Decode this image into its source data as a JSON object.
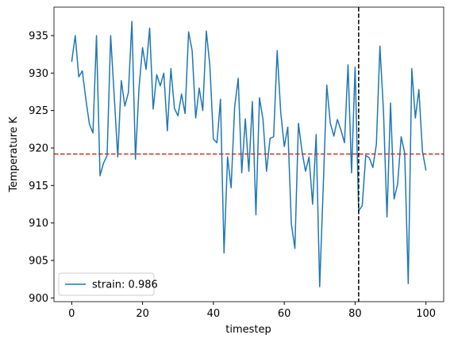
{
  "chart_data": {
    "type": "line",
    "x_label": "timestep",
    "y_label": "Temperature K",
    "x": [
      0,
      1,
      2,
      3,
      4,
      5,
      6,
      7,
      8,
      9,
      10,
      11,
      12,
      13,
      14,
      15,
      16,
      17,
      18,
      19,
      20,
      21,
      22,
      23,
      24,
      25,
      26,
      27,
      28,
      29,
      30,
      31,
      32,
      33,
      34,
      35,
      36,
      37,
      38,
      39,
      40,
      41,
      42,
      43,
      44,
      45,
      46,
      47,
      48,
      49,
      50,
      51,
      52,
      53,
      54,
      55,
      56,
      57,
      58,
      59,
      60,
      61,
      62,
      63,
      64,
      65,
      66,
      67,
      68,
      69,
      70,
      71,
      72,
      73,
      74,
      75,
      76,
      77,
      78,
      79,
      80,
      81,
      82,
      83,
      84,
      85,
      86,
      87,
      88,
      89,
      90,
      91,
      92,
      93,
      94,
      95,
      96,
      97,
      98,
      99,
      100
    ],
    "series": [
      {
        "name": "strain: 0.986",
        "color": "#1f77b4",
        "values": [
          931.5,
          935,
          929.5,
          930.3,
          926.5,
          923.2,
          922,
          935,
          916.3,
          918,
          919,
          935,
          927,
          918.8,
          929,
          925.6,
          927.4,
          936.9,
          918.5,
          928,
          933.4,
          930.5,
          936,
          925.2,
          929.8,
          928.3,
          930,
          922.3,
          930.6,
          925.3,
          924.3,
          927.2,
          924.6,
          935.5,
          933,
          924,
          928,
          925,
          935.6,
          931,
          921.2,
          920.7,
          926.5,
          906,
          918.8,
          914.7,
          925.5,
          929.3,
          916.7,
          923.9,
          916.9,
          926.2,
          911.1,
          926.7,
          923.8,
          916.9,
          921.3,
          921.5,
          933,
          924.8,
          920.2,
          922.8,
          909.9,
          906.6,
          923.3,
          919.6,
          916.9,
          918.8,
          912.5,
          921.8,
          901.5,
          914.8,
          928.4,
          923.3,
          921.6,
          923.8,
          922.4,
          920.7,
          931.1,
          916.7,
          930.8,
          911.6,
          912.3,
          919,
          918.7,
          917.4,
          920.5,
          933.6,
          925,
          910.8,
          926,
          913.2,
          915.2,
          921.5,
          919.3,
          901.9,
          930.6,
          924,
          927.8,
          919.6,
          917
        ]
      }
    ],
    "reference_lines": [
      {
        "axis": "y",
        "value": 919.2,
        "color": "#d62728"
      },
      {
        "axis": "x",
        "value": 81,
        "color": "#000000"
      }
    ],
    "xlim": [
      -5,
      105
    ],
    "ylim": [
      899.5,
      938.8
    ],
    "xticks": [
      0,
      20,
      40,
      60,
      80,
      100
    ],
    "yticks": [
      900,
      905,
      910,
      915,
      920,
      925,
      930,
      935
    ],
    "legend": "lower left",
    "grid": false
  }
}
